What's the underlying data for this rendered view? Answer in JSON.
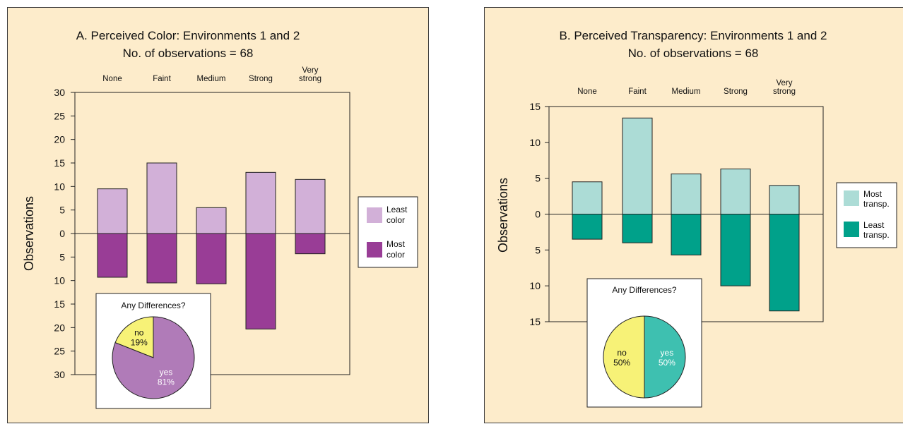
{
  "chart_data": [
    {
      "type": "bar",
      "title": "A. Perceived Color: Environments 1 and 2",
      "subtitle": "No. of observations = 68",
      "ylabel": "Observations",
      "categories": [
        "None",
        "Faint",
        "Medium",
        "Strong",
        "Very strong"
      ],
      "category_lines": [
        [
          "None"
        ],
        [
          "Faint"
        ],
        [
          "Medium"
        ],
        [
          "Strong"
        ],
        [
          "Very",
          "strong"
        ]
      ],
      "ylim": [
        -30,
        30
      ],
      "yticks": [
        "30",
        "25",
        "20",
        "15",
        "10",
        "5",
        "0",
        "5",
        "10",
        "15",
        "20",
        "25",
        "30"
      ],
      "series": [
        {
          "name": "Least color",
          "name_lines": [
            "Least",
            "color"
          ],
          "color": "#d2b0d8",
          "direction": "up",
          "values": [
            9.5,
            15,
            5.5,
            13,
            11.5
          ]
        },
        {
          "name": "Most color",
          "name_lines": [
            "Most",
            "color"
          ],
          "color": "#993d96",
          "direction": "down",
          "values": [
            9.3,
            10.5,
            10.7,
            20.3,
            4.3
          ]
        }
      ],
      "legend_position": "right",
      "inset": {
        "type": "pie",
        "title": "Any Differences?",
        "slices": [
          {
            "label": "no",
            "value": 19,
            "display": "19%",
            "color": "#f7f277",
            "text_color": "#111111"
          },
          {
            "label": "yes",
            "value": 81,
            "display": "81%",
            "color": "#b07bb8",
            "text_color": "#ffffff"
          }
        ]
      }
    },
    {
      "type": "bar",
      "title": "B. Perceived Transparency: Environments 1 and 2",
      "subtitle": "No. of observations = 68",
      "ylabel": "Observations",
      "categories": [
        "None",
        "Faint",
        "Medium",
        "Strong",
        "Very strong"
      ],
      "category_lines": [
        [
          "None"
        ],
        [
          "Faint"
        ],
        [
          "Medium"
        ],
        [
          "Strong"
        ],
        [
          "Very",
          "strong"
        ]
      ],
      "ylim": [
        -15,
        15
      ],
      "yticks": [
        "15",
        "10",
        "5",
        "0",
        "5",
        "10",
        "15"
      ],
      "series": [
        {
          "name": "Most transp.",
          "name_lines": [
            "Most",
            "transp."
          ],
          "color": "#acdcd6",
          "direction": "up",
          "values": [
            4.5,
            13.4,
            5.6,
            6.3,
            4.0
          ]
        },
        {
          "name": "Least transp.",
          "name_lines": [
            "Least",
            "transp."
          ],
          "color": "#00a18a",
          "direction": "down",
          "values": [
            3.5,
            4.0,
            5.7,
            10.0,
            13.5
          ]
        }
      ],
      "legend_position": "right",
      "inset": {
        "type": "pie",
        "title": "Any Differences?",
        "slices": [
          {
            "label": "no",
            "value": 50,
            "display": "50%",
            "color": "#f7f277",
            "text_color": "#111111"
          },
          {
            "label": "yes",
            "value": 50,
            "display": "50%",
            "color": "#3ec0b0",
            "text_color": "#ffffff"
          }
        ]
      }
    }
  ]
}
